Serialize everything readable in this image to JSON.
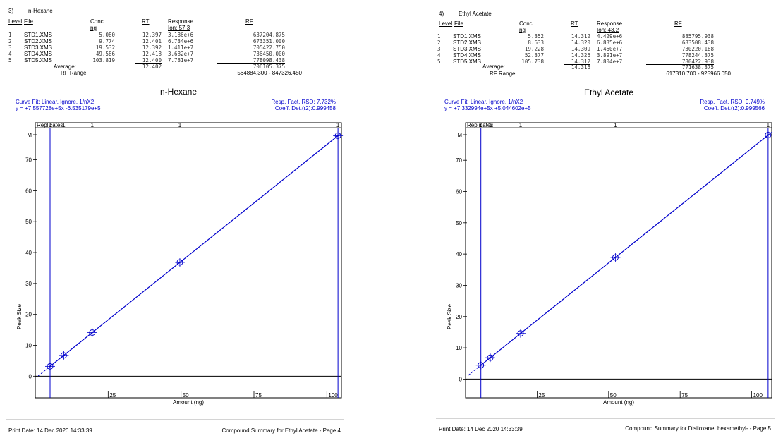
{
  "panels": [
    {
      "header": {
        "number": "3)",
        "compound": "n-Hexane"
      },
      "columns": {
        "level": "Level",
        "file": "File",
        "conc": "Conc.",
        "conc_unit": "ng",
        "rt": "RT",
        "response": "Response",
        "ion": "Ion: 57.3",
        "rf": "RF"
      },
      "rows": [
        {
          "level": "1",
          "file": "STD1.XMS",
          "conc": "5.080",
          "rt": "12.397",
          "response": "3.186e+6",
          "rf": "637204.875"
        },
        {
          "level": "2",
          "file": "STD2.XMS",
          "conc": "9.774",
          "rt": "12.401",
          "response": "6.734e+6",
          "rf": "673351.000"
        },
        {
          "level": "3",
          "file": "STD3.XMS",
          "conc": "19.532",
          "rt": "12.392",
          "response": "1.411e+7",
          "rf": "705422.750"
        },
        {
          "level": "4",
          "file": "STD4.XMS",
          "conc": "49.586",
          "rt": "12.418",
          "response": "3.682e+7",
          "rf": "736450.000"
        },
        {
          "level": "5",
          "file": "STD5.XMS",
          "conc": "103.819",
          "rt": "12.400",
          "response": "7.781e+7",
          "rf": "778098.438"
        }
      ],
      "average_label": "Average:",
      "average_rt": "12.402",
      "average_rf": "706105.375",
      "rf_range_label": "RF Range:",
      "rf_range": "564884.300 - 847326.450",
      "curve_fit": "Curve Fit: Linear,   Ignore,   1/nX2",
      "equation": "y =    +7.557728e+5x   -6.535179e+5",
      "rsd": "Resp. Fact. RSD:  7.732%",
      "r2": "Coeff. Det.(r2):0.999458",
      "footer_left": "Print Date:  14 Dec 2020 14:33:39",
      "footer_right": "Compound Summary for Ethyl Acetate - Page 4"
    },
    {
      "header": {
        "number": "4)",
        "compound": "Ethyl Acetate"
      },
      "columns": {
        "level": "Level",
        "file": "File",
        "conc": "Conc.",
        "conc_unit": "ng",
        "rt": "RT",
        "response": "Response",
        "ion": "Ion: 43.2",
        "rf": "RF"
      },
      "rows": [
        {
          "level": "1",
          "file": "STD1.XMS",
          "conc": "5.352",
          "rt": "14.312",
          "response": "4.429e+6",
          "rf": "885795.938"
        },
        {
          "level": "2",
          "file": "STD2.XMS",
          "conc": "8.633",
          "rt": "14.320",
          "response": "6.835e+6",
          "rf": "683508.438"
        },
        {
          "level": "3",
          "file": "STD3.XMS",
          "conc": "19.228",
          "rt": "14.309",
          "response": "1.460e+7",
          "rf": "730220.188"
        },
        {
          "level": "4",
          "file": "STD4.XMS",
          "conc": "52.377",
          "rt": "14.326",
          "response": "3.891e+7",
          "rf": "778244.375"
        },
        {
          "level": "5",
          "file": "STD5.XMS",
          "conc": "105.738",
          "rt": "14.312",
          "response": "7.804e+7",
          "rf": "780422.938"
        }
      ],
      "average_label": "Average:",
      "average_rt": "14.316",
      "average_rf": "771638.375",
      "rf_range_label": "RF Range:",
      "rf_range": "617310.700 - 925966.050",
      "curve_fit": "Curve Fit: Linear,   Ignore,   1/nX2",
      "equation": "y =    +7.332994e+5x   +5.044602e+5",
      "rsd": "Resp. Fact. RSD:  9.749%",
      "r2": "Coeff. Det.(r2):0.999566",
      "footer_left": "Print Date:  14 Dec 2020 14:33:39",
      "footer_right": "Compound Summary for Disiloxane, hexamethyl- - Page 5"
    }
  ],
  "chart_data": [
    {
      "type": "scatter",
      "title": "n-Hexane",
      "xlabel": "Amount (ng)",
      "ylabel": "Peak Size",
      "xlim": [
        0,
        105
      ],
      "ylim": [
        -7,
        82
      ],
      "xticks": [
        25,
        50,
        75,
        100
      ],
      "yticks": [
        0,
        10,
        20,
        30,
        40,
        50,
        60,
        70
      ],
      "y_top_label": "M",
      "replicates_label": "Replicates",
      "replicates": [
        "1",
        "1",
        "1",
        "1",
        "1"
      ],
      "points": [
        {
          "x": 5.08,
          "y": 3.186
        },
        {
          "x": 9.774,
          "y": 6.734
        },
        {
          "x": 19.532,
          "y": 14.11
        },
        {
          "x": 49.586,
          "y": 36.82
        },
        {
          "x": 103.819,
          "y": 77.81
        }
      ],
      "fit": {
        "slope": 0.7557728,
        "intercept": -0.6535179
      },
      "fit_range": [
        5.08,
        103.819
      ],
      "series_color": "#0000cc"
    },
    {
      "type": "scatter",
      "title": "Ethyl Acetate",
      "xlabel": "Amount (ng)",
      "ylabel": "Peak Size",
      "xlim": [
        0,
        107
      ],
      "ylim": [
        -6,
        82
      ],
      "xticks": [
        25,
        50,
        75,
        100
      ],
      "yticks": [
        0,
        10,
        20,
        30,
        40,
        50,
        60,
        70
      ],
      "y_top_label": "M",
      "replicates_label": "Replicates",
      "replicates": [
        "1",
        "1",
        "1",
        "1",
        "1"
      ],
      "points": [
        {
          "x": 5.352,
          "y": 4.429
        },
        {
          "x": 8.633,
          "y": 6.835
        },
        {
          "x": 19.228,
          "y": 14.6
        },
        {
          "x": 52.377,
          "y": 38.91
        },
        {
          "x": 105.738,
          "y": 78.04
        }
      ],
      "fit": {
        "slope": 0.7332994,
        "intercept": 0.5044602
      },
      "fit_range": [
        5.352,
        105.738
      ],
      "series_color": "#0000cc"
    }
  ]
}
